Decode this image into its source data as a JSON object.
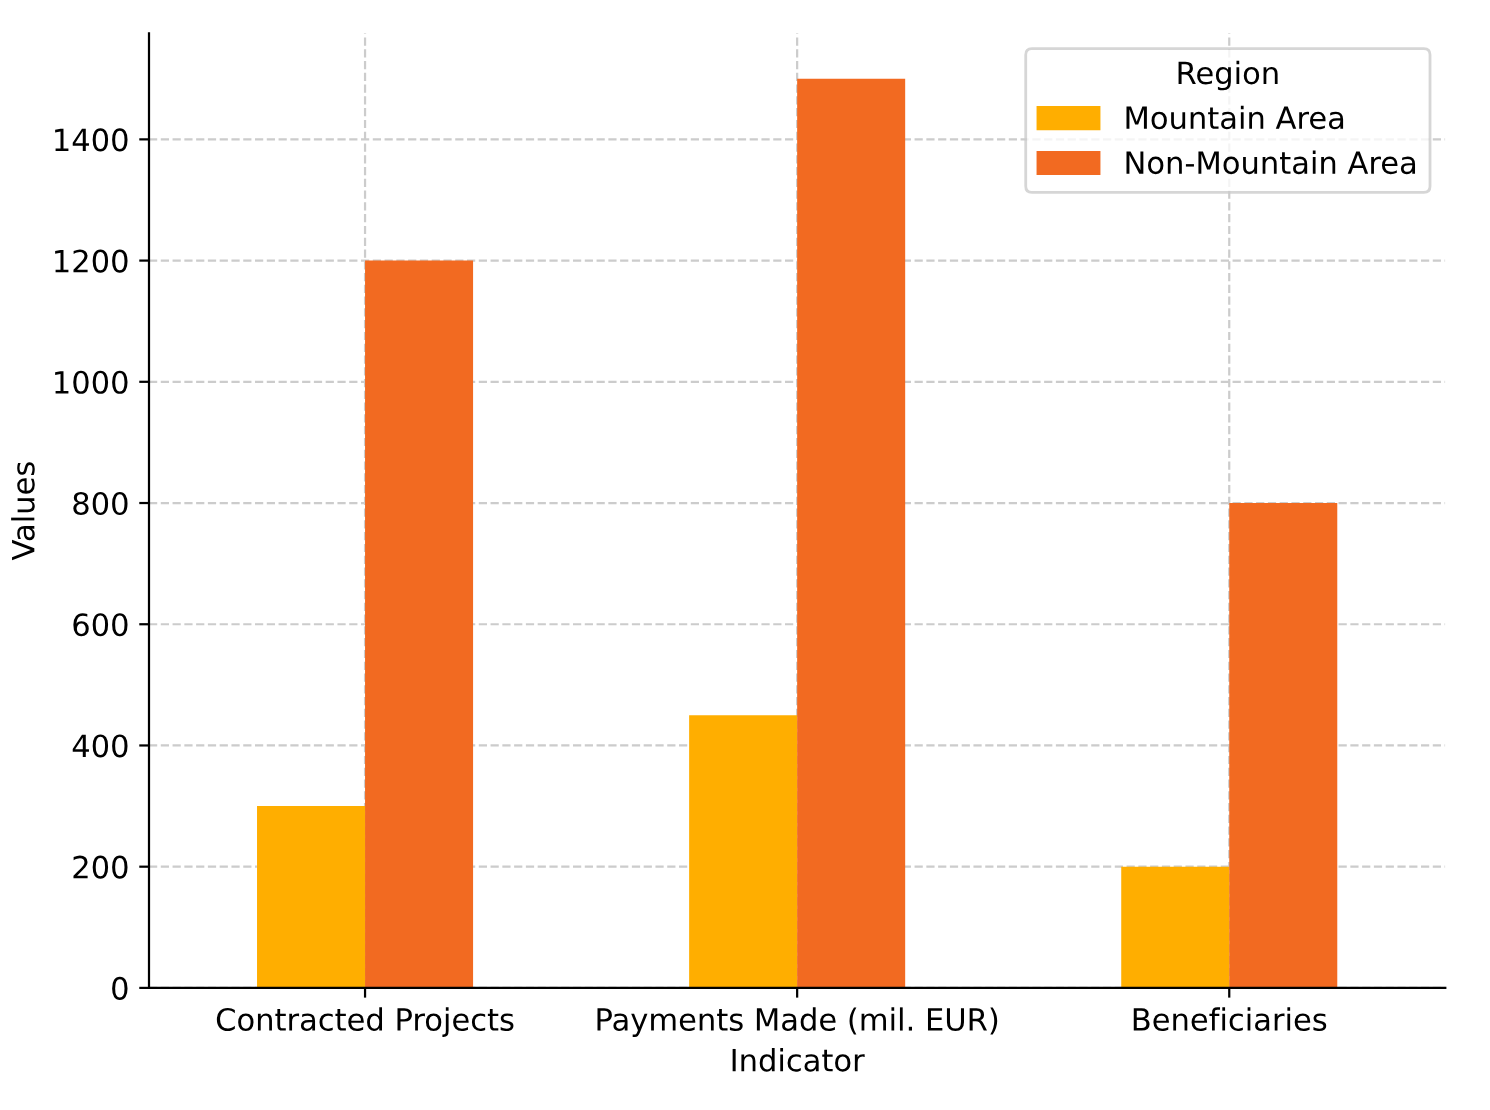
{
  "chart_data": {
    "type": "bar",
    "xlabel": "Indicator",
    "ylabel": "Values",
    "categories": [
      "Contracted Projects",
      "Payments Made (mil. EUR)",
      "Beneficiaries"
    ],
    "series": [
      {
        "name": "Mountain Area",
        "color": "#ffae00",
        "values": [
          300,
          450,
          200
        ]
      },
      {
        "name": "Non-Mountain Area",
        "color": "#f26a21",
        "values": [
          1200,
          1500,
          800
        ]
      }
    ],
    "ylim": [
      0,
      1575
    ],
    "yticks": [
      0,
      200,
      400,
      600,
      800,
      1000,
      1200,
      1400
    ],
    "grid": true,
    "legend": "top right",
    "legend_title": "Region"
  }
}
